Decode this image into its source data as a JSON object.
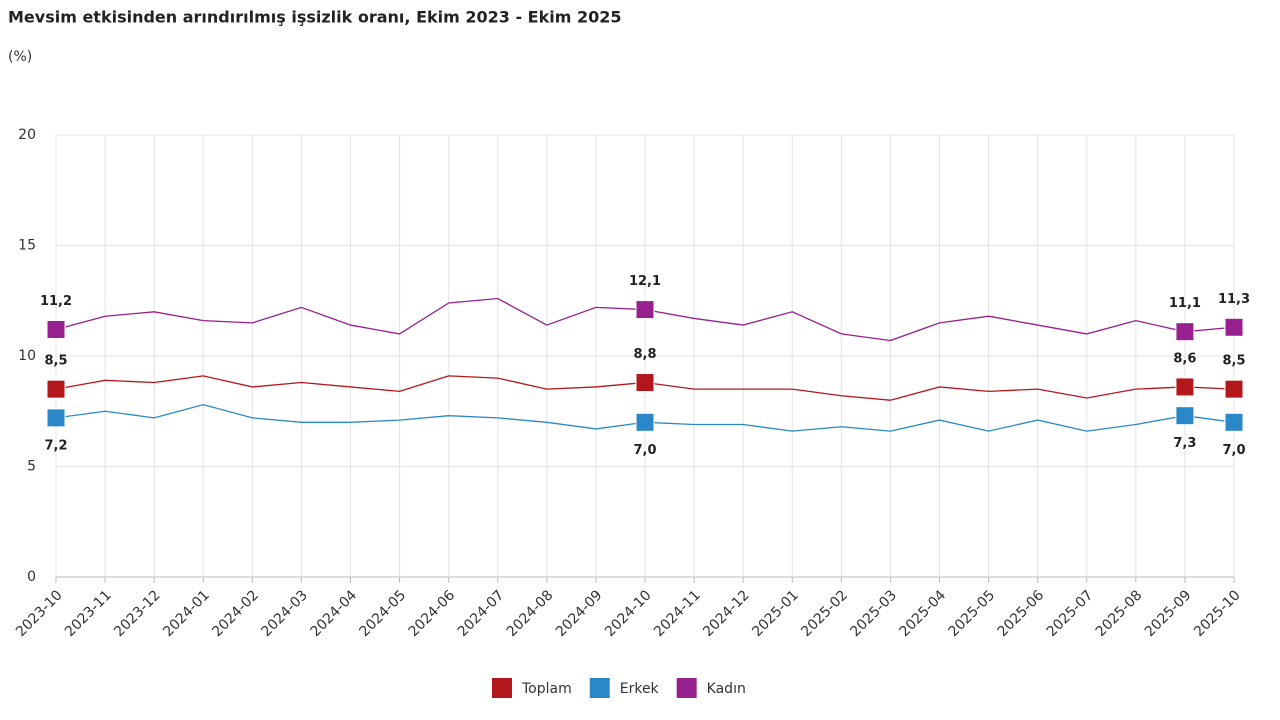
{
  "chart_data": {
    "type": "line",
    "title": "Mevsim etkisinden arındırılmış işsizlik oranı, Ekim 2023 - Ekim 2025",
    "subtitle": "(%)",
    "categories": [
      "2023-10",
      "2023-11",
      "2023-12",
      "2024-01",
      "2024-02",
      "2024-03",
      "2024-04",
      "2024-05",
      "2024-06",
      "2024-07",
      "2024-08",
      "2024-09",
      "2024-10",
      "2024-11",
      "2024-12",
      "2025-01",
      "2025-02",
      "2025-03",
      "2025-04",
      "2025-05",
      "2025-06",
      "2025-07",
      "2025-08",
      "2025-09",
      "2025-10"
    ],
    "series": [
      {
        "name": "Toplam",
        "color": "#b3171c",
        "label_side": "above",
        "values": [
          8.5,
          8.9,
          8.8,
          9.1,
          8.6,
          8.8,
          8.6,
          8.4,
          9.1,
          9.0,
          8.5,
          8.6,
          8.8,
          8.5,
          8.5,
          8.5,
          8.2,
          8.0,
          8.6,
          8.4,
          8.5,
          8.1,
          8.5,
          8.6,
          8.5
        ],
        "value_labels": [
          "8,5",
          null,
          null,
          null,
          null,
          null,
          null,
          null,
          null,
          null,
          null,
          null,
          "8,8",
          null,
          null,
          null,
          null,
          null,
          null,
          null,
          null,
          null,
          null,
          "8,6",
          "8,5"
        ]
      },
      {
        "name": "Erkek",
        "color": "#2a88c8",
        "label_side": "below",
        "values": [
          7.2,
          7.5,
          7.2,
          7.8,
          7.2,
          7.0,
          7.0,
          7.1,
          7.3,
          7.2,
          7.0,
          6.7,
          7.0,
          6.9,
          6.9,
          6.6,
          6.8,
          6.6,
          7.1,
          6.6,
          7.1,
          6.6,
          6.9,
          7.3,
          7.0
        ],
        "value_labels": [
          "7,2",
          null,
          null,
          null,
          null,
          null,
          null,
          null,
          null,
          null,
          null,
          null,
          "7,0",
          null,
          null,
          null,
          null,
          null,
          null,
          null,
          null,
          null,
          null,
          "7,3",
          "7,0"
        ]
      },
      {
        "name": "Kadın",
        "color": "#97208e",
        "label_side": "above",
        "values": [
          11.2,
          11.8,
          12.0,
          11.6,
          11.5,
          12.2,
          11.4,
          11.0,
          12.4,
          12.6,
          11.4,
          12.2,
          12.1,
          11.7,
          11.4,
          12.0,
          11.0,
          10.7,
          11.5,
          11.8,
          11.4,
          11.0,
          11.6,
          11.1,
          11.3
        ],
        "value_labels": [
          "11,2",
          null,
          null,
          null,
          null,
          null,
          null,
          null,
          null,
          null,
          null,
          null,
          "12,1",
          null,
          null,
          null,
          null,
          null,
          null,
          null,
          null,
          null,
          null,
          "11,1",
          "11,3"
        ]
      }
    ],
    "ylim": [
      0,
      20
    ],
    "yticks": [
      0,
      5,
      10,
      15,
      20
    ],
    "grid": true,
    "legend": "bottom"
  }
}
